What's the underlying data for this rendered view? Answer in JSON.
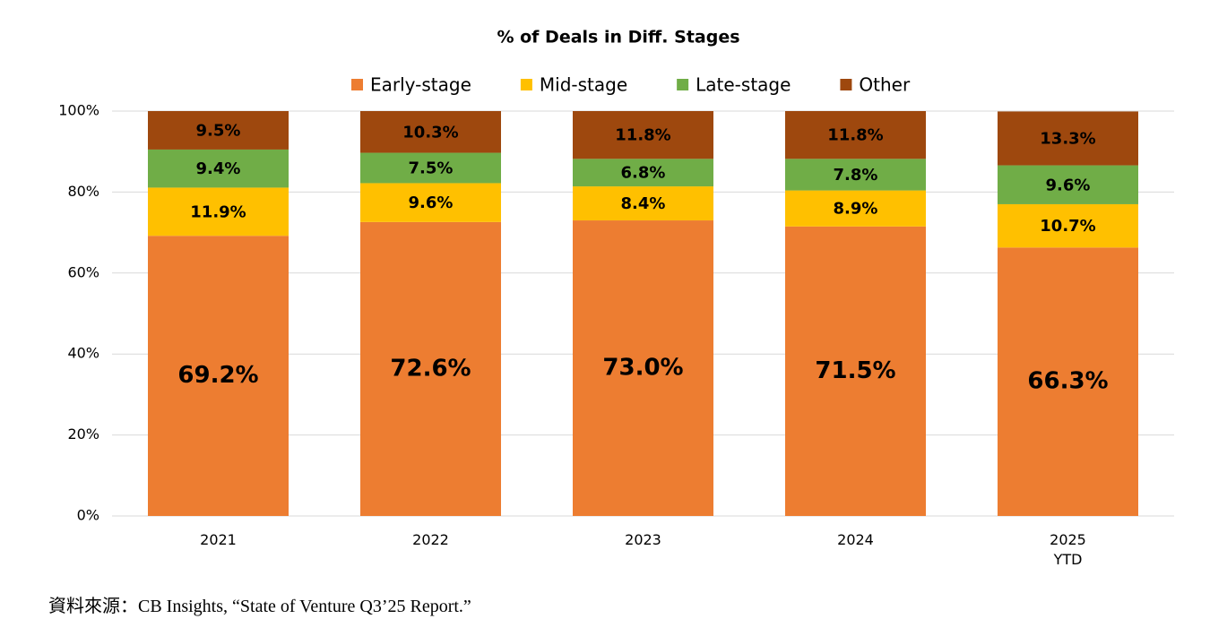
{
  "chart_data": {
    "type": "stacked_bar",
    "title": "% of Deals in Diff. Stages",
    "categories": [
      "2021",
      "2022",
      "2023",
      "2024",
      "2025\nYTD"
    ],
    "series": [
      {
        "name": "Early-stage",
        "color": "#ED7D31",
        "label_color": "#000000",
        "values": [
          69.2,
          72.6,
          73.0,
          71.5,
          66.3
        ],
        "value_labels": [
          "69.2%",
          "72.6%",
          "73.0%",
          "71.5%",
          "66.3%"
        ]
      },
      {
        "name": "Mid-stage",
        "color": "#FFC000",
        "label_color": "#000000",
        "values": [
          11.9,
          9.6,
          8.4,
          8.9,
          10.7
        ],
        "value_labels": [
          "11.9%",
          "9.6%",
          "8.4%",
          "8.9%",
          "10.7%"
        ]
      },
      {
        "name": "Late-stage",
        "color": "#70AD47",
        "label_color": "#000000",
        "values": [
          9.4,
          7.5,
          6.8,
          7.8,
          9.6
        ],
        "value_labels": [
          "9.4%",
          "7.5%",
          "6.8%",
          "7.8%",
          "9.6%"
        ]
      },
      {
        "name": "Other",
        "color": "#9E480E",
        "label_color": "#FFFFFF",
        "values": [
          9.5,
          10.3,
          11.8,
          11.8,
          13.3
        ],
        "value_labels": [
          "9.5%",
          "10.3%",
          "11.8%",
          "11.8%",
          "13.3%"
        ]
      }
    ],
    "ylim": [
      0,
      100
    ],
    "yticks": [
      {
        "value": 0,
        "label": "0%"
      },
      {
        "value": 20,
        "label": "20%"
      },
      {
        "value": 40,
        "label": "40%"
      },
      {
        "value": 60,
        "label": "60%"
      },
      {
        "value": 80,
        "label": "80%"
      },
      {
        "value": 100,
        "label": "100%"
      }
    ],
    "grid": true,
    "legend": "top"
  },
  "source": "資料來源：CB Insights, “State of Venture Q3’25 Report.”"
}
